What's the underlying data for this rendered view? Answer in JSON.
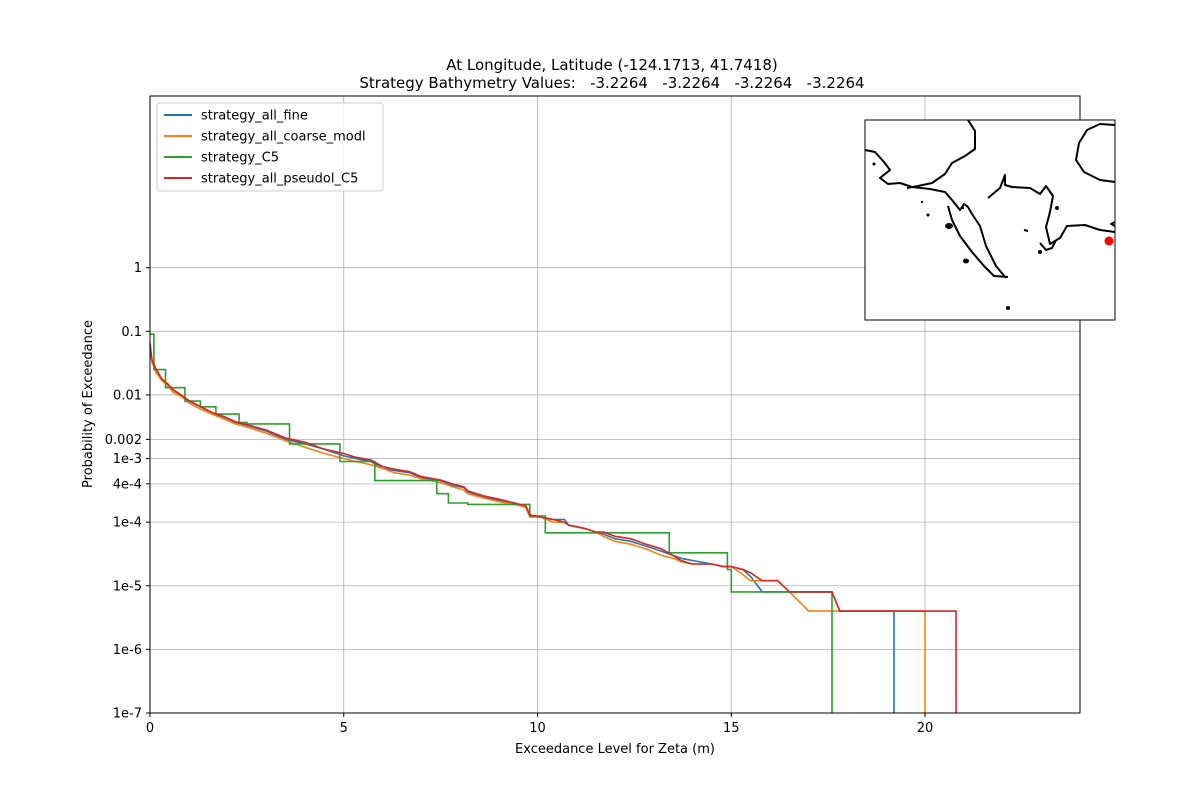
{
  "chart_data": {
    "type": "line",
    "title": "At Longitude, Latitude (-124.1713,  41.7418)",
    "subtitle": "Strategy Bathymetry Values:   -3.2264   -3.2264   -3.2264   -3.2264",
    "xlabel": "Exceedance Level for Zeta (m)",
    "ylabel": "Probability of Exceedance",
    "xlim": [
      0,
      24
    ],
    "ylim": [
      1e-07,
      500
    ],
    "yscale": "log",
    "grid": true,
    "legend_position": "upper-left",
    "x_ticks": [
      {
        "value": 0,
        "label": "0"
      },
      {
        "value": 5,
        "label": "5"
      },
      {
        "value": 10,
        "label": "10"
      },
      {
        "value": 15,
        "label": "15"
      },
      {
        "value": 20,
        "label": "20"
      }
    ],
    "y_ticks": [
      {
        "value": 1,
        "label": "1"
      },
      {
        "value": 0.1,
        "label": "0.1"
      },
      {
        "value": 0.01,
        "label": "0.01"
      },
      {
        "value": 0.002,
        "label": "0.002"
      },
      {
        "value": 0.001,
        "label": "1e-3"
      },
      {
        "value": 0.0004,
        "label": "4e-4"
      },
      {
        "value": 0.0001,
        "label": "1e-4"
      },
      {
        "value": 1e-05,
        "label": "1e-5"
      },
      {
        "value": 1e-06,
        "label": "1e-6"
      },
      {
        "value": 1e-07,
        "label": "1e-7"
      }
    ],
    "series": [
      {
        "name": "strategy_all_fine",
        "color": "#1f77b4",
        "step": false,
        "x": [
          0,
          0.05,
          0.15,
          0.3,
          0.45,
          0.6,
          0.8,
          1.0,
          1.3,
          1.6,
          1.9,
          2.2,
          2.6,
          3.0,
          3.5,
          4.0,
          4.5,
          5.0,
          5.3,
          5.7,
          6.0,
          6.3,
          6.7,
          7.0,
          7.5,
          7.8,
          8.1,
          8.2,
          8.6,
          9.0,
          9.4,
          9.7,
          9.8,
          10.1,
          10.4,
          10.7,
          10.8,
          11.2,
          11.5,
          11.7,
          12.0,
          12.4,
          12.8,
          13.2,
          13.5,
          13.7,
          14.0,
          14.5,
          14.8,
          15.0,
          15.3,
          15.5,
          15.8,
          16.2,
          16.5,
          17.6,
          17.8,
          18.0,
          19.2,
          19.2
        ],
        "y": [
          0.06,
          0.035,
          0.025,
          0.018,
          0.015,
          0.012,
          0.01,
          0.008,
          0.0065,
          0.0052,
          0.0045,
          0.0037,
          0.0032,
          0.0027,
          0.002,
          0.0017,
          0.0014,
          0.0011,
          0.001,
          0.0009,
          0.0007,
          0.00065,
          0.0006,
          0.0005,
          0.00045,
          0.00038,
          0.00035,
          0.0003,
          0.00025,
          0.00022,
          0.0002,
          0.00018,
          0.00013,
          0.00012,
          0.00011,
          0.00011,
          9e-05,
          8e-05,
          7e-05,
          6.5e-05,
          5.5e-05,
          5e-05,
          4.2e-05,
          3.5e-05,
          3e-05,
          2.7e-05,
          2.5e-05,
          2.2e-05,
          2e-05,
          2e-05,
          1.8e-05,
          1.4e-05,
          8e-06,
          8e-06,
          8e-06,
          8e-06,
          4e-06,
          4e-06,
          4e-06,
          1e-07
        ]
      },
      {
        "name": "strategy_all_coarse_modl",
        "color": "#ff7f0e",
        "step": false,
        "x": [
          0,
          0.05,
          0.15,
          0.3,
          0.45,
          0.6,
          0.8,
          1.0,
          1.3,
          1.6,
          1.9,
          2.2,
          2.6,
          3.0,
          3.5,
          4.0,
          4.5,
          5.0,
          5.3,
          5.7,
          6.0,
          6.3,
          6.7,
          7.0,
          7.5,
          7.8,
          8.1,
          8.2,
          8.6,
          9.0,
          9.4,
          9.7,
          9.8,
          10.1,
          10.4,
          10.7,
          10.8,
          11.2,
          11.5,
          11.7,
          12.0,
          12.4,
          12.8,
          13.2,
          13.5,
          13.7,
          14.0,
          14.5,
          14.8,
          15.0,
          15.3,
          15.5,
          15.8,
          16.2,
          16.5,
          17.0,
          17.6,
          17.8,
          18.0,
          20.0,
          20.0
        ],
        "y": [
          0.055,
          0.033,
          0.023,
          0.017,
          0.014,
          0.011,
          0.0095,
          0.0075,
          0.006,
          0.005,
          0.0042,
          0.0035,
          0.003,
          0.0025,
          0.0019,
          0.0015,
          0.0012,
          0.001,
          0.0009,
          0.0008,
          0.0007,
          0.0006,
          0.00055,
          0.00048,
          0.00042,
          0.00036,
          0.00032,
          0.00028,
          0.00024,
          0.00021,
          0.00019,
          0.00017,
          0.00012,
          0.00012,
          0.0001,
          0.0001,
          9e-05,
          8e-05,
          7e-05,
          6e-05,
          5e-05,
          4.5e-05,
          3.8e-05,
          3e-05,
          2.7e-05,
          2.4e-05,
          2.2e-05,
          2.2e-05,
          2e-05,
          2e-05,
          1.5e-05,
          1.2e-05,
          1.2e-05,
          1.2e-05,
          8e-06,
          4e-06,
          4e-06,
          4e-06,
          4e-06,
          4e-06,
          1e-07
        ]
      },
      {
        "name": "strategy_C5",
        "color": "#2ca02c",
        "step": true,
        "x": [
          0,
          0.1,
          0.4,
          0.9,
          1.3,
          1.7,
          2.3,
          2.5,
          3.6,
          4.9,
          5.8,
          7.4,
          7.7,
          8.2,
          9.8,
          10.2,
          13.4,
          14.9,
          15.0,
          17.3,
          17.6
        ],
        "y": [
          0.09,
          0.025,
          0.013,
          0.008,
          0.0065,
          0.005,
          0.0037,
          0.0035,
          0.0017,
          0.0009,
          0.00045,
          0.00028,
          0.0002,
          0.00019,
          0.000125,
          6.8e-05,
          3.3e-05,
          1.8e-05,
          8e-06,
          8e-06,
          1e-07
        ]
      },
      {
        "name": "strategy_all_pseudol_C5",
        "color": "#d62728",
        "step": false,
        "x": [
          0,
          0.05,
          0.15,
          0.3,
          0.45,
          0.6,
          0.8,
          1.0,
          1.3,
          1.6,
          1.9,
          2.2,
          2.6,
          3.0,
          3.5,
          4.0,
          4.5,
          5.0,
          5.3,
          5.7,
          6.0,
          6.3,
          6.7,
          7.0,
          7.5,
          7.8,
          8.1,
          8.2,
          8.6,
          9.0,
          9.4,
          9.7,
          9.8,
          10.1,
          10.4,
          10.7,
          10.8,
          11.2,
          11.5,
          11.7,
          12.0,
          12.4,
          12.8,
          13.2,
          13.5,
          13.7,
          14.0,
          14.5,
          14.8,
          15.0,
          15.3,
          15.5,
          15.8,
          16.2,
          16.5,
          17.6,
          17.8,
          18.0,
          20.8,
          20.8
        ],
        "y": [
          0.065,
          0.036,
          0.026,
          0.018,
          0.015,
          0.012,
          0.01,
          0.0082,
          0.0066,
          0.0053,
          0.0046,
          0.0038,
          0.0033,
          0.0028,
          0.0021,
          0.0018,
          0.0014,
          0.0012,
          0.00105,
          0.00095,
          0.00075,
          0.00068,
          0.00062,
          0.00052,
          0.00046,
          0.0004,
          0.00036,
          0.00031,
          0.00026,
          0.00023,
          0.0002,
          0.00018,
          0.00013,
          0.00012,
          0.00011,
          0.0001,
          9e-05,
          8e-05,
          7e-05,
          7e-05,
          6e-05,
          5.5e-05,
          4.5e-05,
          3.8e-05,
          3e-05,
          2.5e-05,
          2.2e-05,
          2.2e-05,
          2e-05,
          2e-05,
          1.8e-05,
          1.6e-05,
          1.2e-05,
          1.2e-05,
          8e-06,
          8e-06,
          4e-06,
          4e-06,
          4e-06,
          1e-07
        ]
      }
    ],
    "inset_map": {
      "position": "upper-right",
      "marker_color": "#ff0000"
    }
  }
}
